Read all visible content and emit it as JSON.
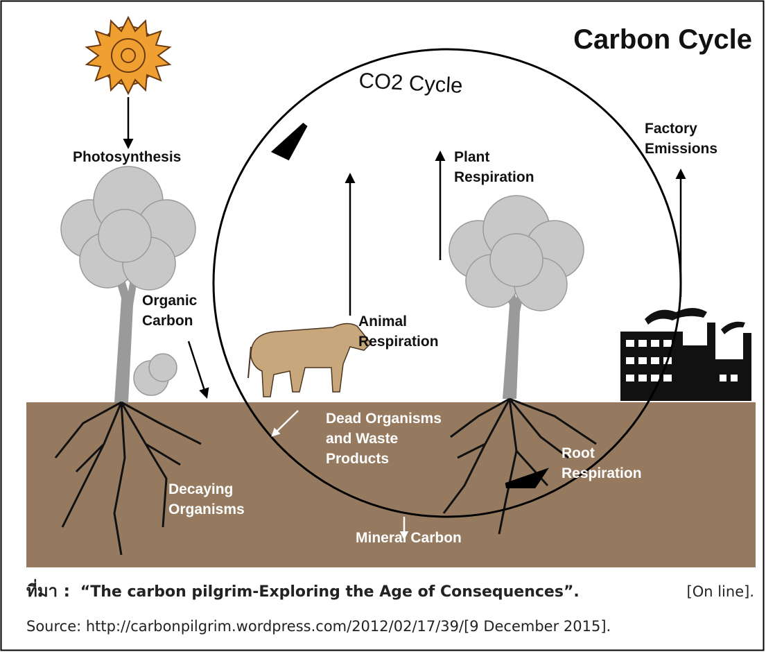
{
  "title": "Carbon Cycle",
  "cycle_label": "CO2 Cycle",
  "labels": [
    {
      "lines": [
        "Photosynthesis"
      ]
    },
    {
      "lines": [
        "Factory",
        "Emissions"
      ]
    },
    {
      "lines": [
        "Plant",
        "Respiration"
      ]
    },
    {
      "lines": [
        "Organic",
        "Carbon"
      ]
    },
    {
      "lines": [
        "Animal",
        "Respiration"
      ]
    },
    {
      "lines": [
        "Dead Organisms",
        "and Waste",
        "Products"
      ]
    },
    {
      "lines": [
        "Root",
        "Respiration"
      ]
    },
    {
      "lines": [
        "Decaying",
        "Organisms"
      ]
    },
    {
      "lines": [
        "Mineral Carbon"
      ]
    }
  ],
  "caption": {
    "prefix": "ที่มา :",
    "title": "“The carbon pilgrim-Exploring the Age of Consequences”.",
    "suffix": "[On line].",
    "source": "Source: http://carbonpilgrim.wordpress.com/2012/02/17/39/[9 December 2015]."
  }
}
